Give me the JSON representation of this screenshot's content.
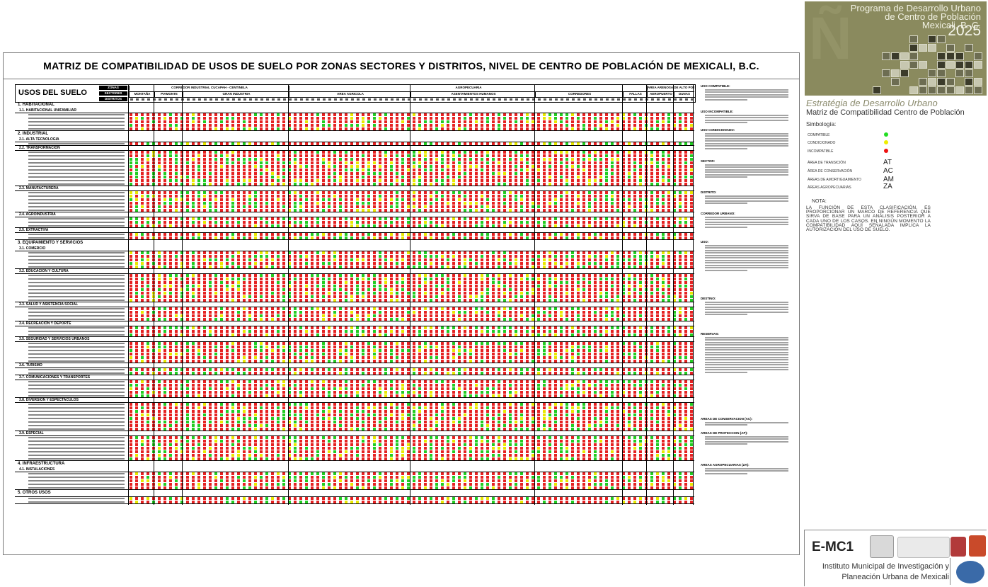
{
  "sheet": {
    "title": "MATRIZ DE COMPATIBILIDAD DE USOS DE SUELO POR ZONAS SECTORES Y DISTRITOS, NIVEL DE CENTRO DE POBLACIÓN DE MEXICALI, B.C."
  },
  "matrix": {
    "usos_title": "USOS DEL SUELO",
    "row_labels": [
      "ZONAS",
      "SECTORES",
      "DISTRITOS"
    ],
    "zone_groups": [
      "CORREDOR INDUSTRIAL CUCAPAH - CENTINELA",
      "AGROPECUARIA",
      "AREA ARENOSA DE ALTO POTENCIAL"
    ],
    "sector_groups": [
      "MONTAÑA",
      "PIAMONTE",
      "GRAN INDUSTRIA",
      "AREA AGRICOLA",
      "ASENTAMIENTOS HUMANOS",
      "CORREDORES",
      "FALLAS",
      "AEROPUERTO",
      "DUNAS"
    ],
    "sections": [
      {
        "num": "1.",
        "name": "HABITACIONAL",
        "subs": [
          {
            "num": "1.1.",
            "name": "HABITACIONAL UNIFAMILIAR",
            "items": 5
          }
        ]
      },
      {
        "num": "2.",
        "name": "INDUSTRIAL",
        "subs": [
          {
            "num": "2.1.",
            "name": "ALTA TECNOLOGIA",
            "items": 1
          },
          {
            "num": "2.2.",
            "name": "TRANSFORMACION",
            "items": 10
          },
          {
            "num": "2.3.",
            "name": "MANUFACTURERA",
            "items": 6
          },
          {
            "num": "2.4.",
            "name": "AGROINDUSTRIA",
            "items": 3
          },
          {
            "num": "2.5.",
            "name": "EXTRACTIVA",
            "items": 2
          }
        ]
      },
      {
        "num": "3.",
        "name": "EQUIPAMIENTO Y SERVICIOS",
        "subs": [
          {
            "num": "3.1.",
            "name": "COMERCIO",
            "items": 5
          },
          {
            "num": "3.2.",
            "name": "EDUCACION Y CULTURA",
            "items": 8
          },
          {
            "num": "3.3.",
            "name": "SALUD Y ASISTENCIA SOCIAL",
            "items": 4
          },
          {
            "num": "3.4.",
            "name": "RECREACION Y DEPORTE",
            "items": 3
          },
          {
            "num": "3.5.",
            "name": "SEGURIDAD Y SERVICIOS URBANOS",
            "items": 6
          },
          {
            "num": "3.6.",
            "name": "TURISMO",
            "items": 2
          },
          {
            "num": "3.7.",
            "name": "COMUNICACIONES Y TRANSPORTES",
            "items": 5
          },
          {
            "num": "3.8.",
            "name": "DIVERSION Y ESPECTACULOS",
            "items": 8
          },
          {
            "num": "3.9.",
            "name": "ESPECIAL",
            "items": 7
          }
        ]
      },
      {
        "num": "4.",
        "name": "INFRAESTRUCTURA",
        "subs": [
          {
            "num": "4.1.",
            "name": "INSTALACIONES",
            "items": 5
          }
        ]
      },
      {
        "num": "5.",
        "name": "OTROS USOS",
        "subs": [
          {
            "num": "",
            "name": "",
            "items": 2
          }
        ]
      }
    ]
  },
  "notes": {
    "headings": [
      "USO COMPATIBLE:",
      "USO INCOMPATIBLE:",
      "USO CONDICIONADO:",
      "SECTOR:",
      "DISTRITO:",
      "CORREDOR URBANO:",
      "USO:",
      "DESTINO:",
      "RESERVAS:",
      "AREAS DE CONSERVACION (AC):",
      "AREAS DE PROTECCION (AP):",
      "AREAS AGROPECUARIAS (ZA):"
    ]
  },
  "side": {
    "cover_title": [
      "Programa de Desarrollo Urbano",
      "de Centro de Población",
      "Mexicali, B. C."
    ],
    "cover_year": "2025",
    "estrategia": "Estratégia de Desarrollo Urbano",
    "matriz_sub": "Matriz de Compatibilidad Centro de Población",
    "simbologia": "Simbología:",
    "legend": [
      {
        "label": "COMPATIBLE",
        "color": "#22dd22"
      },
      {
        "label": "CONDICIONADO",
        "color": "#eeee00"
      },
      {
        "label": "INCOMPATIBLE",
        "color": "#ee1111"
      }
    ],
    "areas": [
      {
        "label": "ÁREA DE TRANSICIÓN",
        "abbr": "AT"
      },
      {
        "label": "ÁREA DE CONSERVACIÓN",
        "abbr": "AC"
      },
      {
        "label": "ÁREAS DE AMORTIGUAMIENTO",
        "abbr": "AM"
      },
      {
        "label": "ÁREAS AGROPECUARIAS",
        "abbr": "ZA"
      }
    ],
    "nota_h": "NOTA:",
    "nota_text": "LA FUNCIÓN DE ESTA CLASIFICACIÓN, ES PROPORCIONAR UN MARCO DE REFERENCIA QUE SIRVA DE BASE PARA UN ANÁLISIS POSTERIOR A CADA UNO DE LOS CASOS. EN NINGÚN MOMENTO LA COMPATIBILIDAD AQUÍ SEÑALADA IMPLICA LA AUTORIZACIÓN DEL USO DE SUELO.",
    "code": "E-MC1",
    "inst1": "Instituto Municipal de Investigación y",
    "inst2": "Planeación Urbana de Mexicali"
  }
}
